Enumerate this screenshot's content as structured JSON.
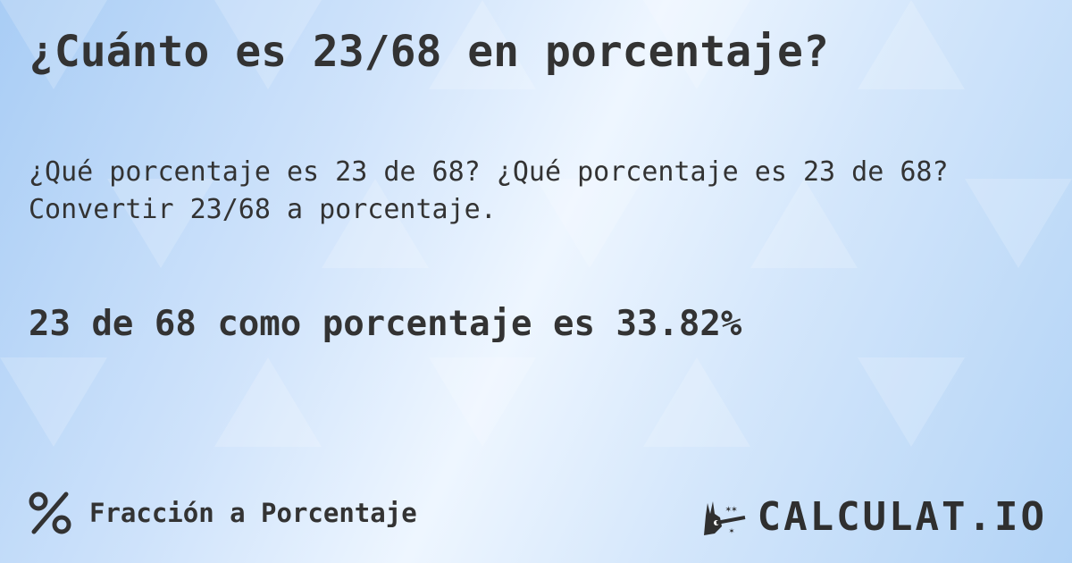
{
  "title": "¿Cuánto es 23/68 en porcentaje?",
  "question": "¿Qué porcentaje es 23 de 68? ¿Qué porcentaje es 23 de 68? Convertir 23/68 a porcentaje.",
  "result": "23 de 68 como porcentaje es 33.82%",
  "footer": {
    "icon": "percent-icon",
    "label": "Fracción a Porcentaje"
  },
  "logo": {
    "text": "CALCULAT.IO",
    "icon": "magic-hand-wand-icon"
  }
}
